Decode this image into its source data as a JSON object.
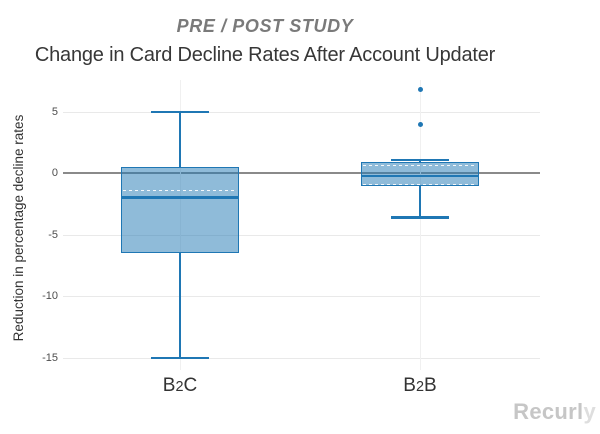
{
  "watermark": {
    "text": "Recurly"
  },
  "chart_data": {
    "type": "box",
    "title": "PRE / POST STUDY",
    "subtitle": "Change in Card Decline Rates After Account Updater",
    "xlabel": "",
    "ylabel": "Reduction in percentage decline rates",
    "categories": [
      "B2C",
      "B2B"
    ],
    "yticks": [
      5,
      0,
      -5,
      -10,
      -15
    ],
    "ylim": [
      -15.98,
      7.6
    ],
    "grid": true,
    "zero_line": 0,
    "legend": "none",
    "series": [
      {
        "name": "B2C",
        "whisker_low": -15,
        "q1": -6.5,
        "median": -1.95,
        "q3": 0.55,
        "whisker_high": 5,
        "mean_dashed_lines": [
          -1.35
        ],
        "outliers": []
      },
      {
        "name": "B2B",
        "whisker_low": -3.6,
        "q1": -1.05,
        "median": -0.2,
        "q3": 0.9,
        "whisker_high": 1.1,
        "mean_dashed_lines": [
          0.65,
          -0.85
        ],
        "outliers": [
          6.8,
          4
        ]
      }
    ],
    "colors": {
      "box_border": "#1f77b4",
      "box_fill": "rgba(31,119,180,0.5)",
      "outlier": "#1f77b4",
      "zero_line": "#8a8a8a",
      "gridline": "#e9e9e9",
      "dashed_line": "#ffffff",
      "kicker_text": "#7a7a7a",
      "title_text": "#373737",
      "watermark_text": "#c6c6c6"
    }
  }
}
